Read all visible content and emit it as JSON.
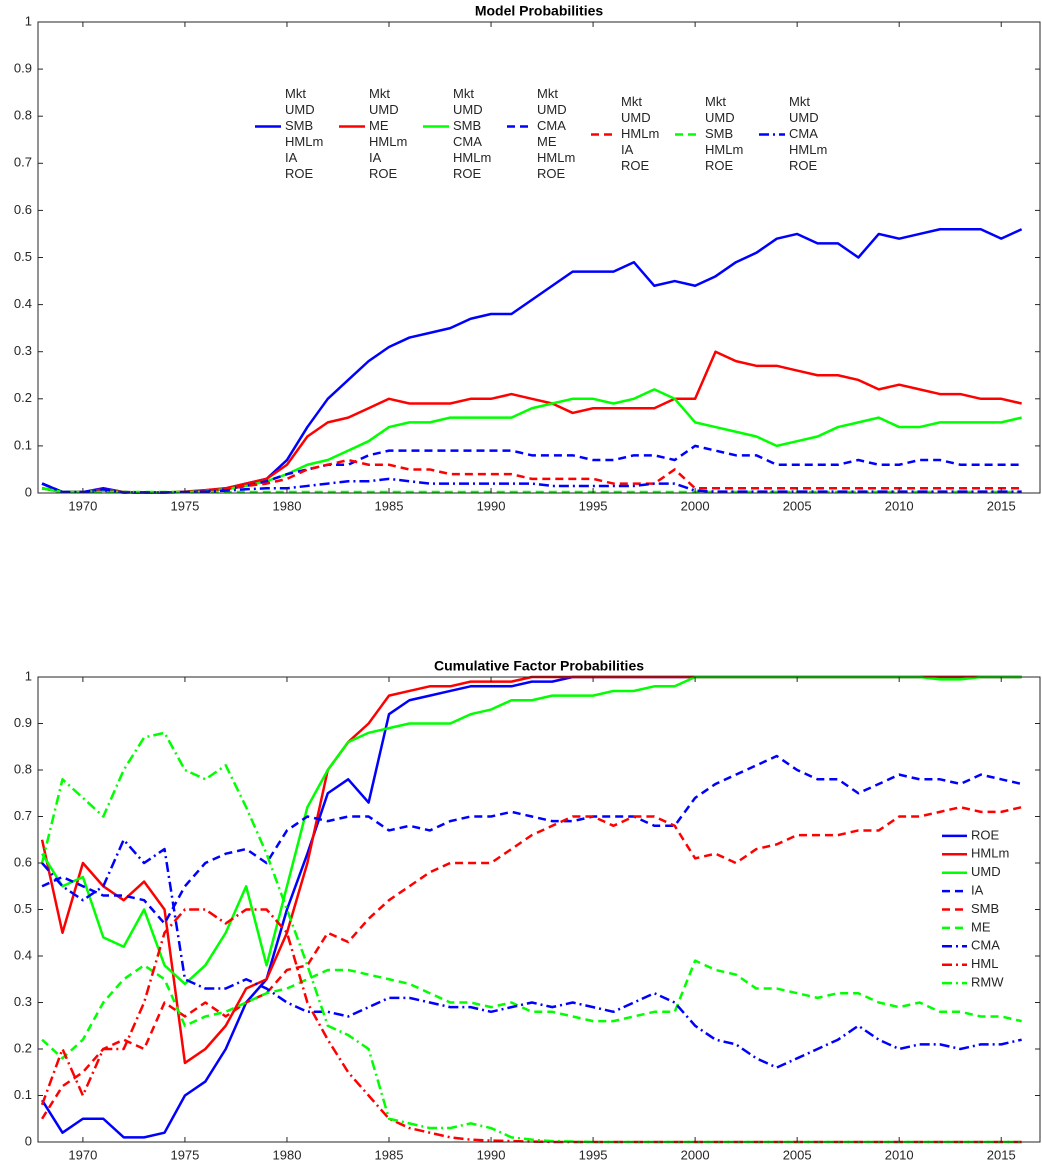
{
  "chart_data": [
    {
      "type": "line",
      "title": "Model Probabilities",
      "x": [
        1968,
        1969,
        1970,
        1971,
        1972,
        1973,
        1974,
        1975,
        1976,
        1977,
        1978,
        1979,
        1980,
        1981,
        1982,
        1983,
        1984,
        1985,
        1986,
        1987,
        1988,
        1989,
        1990,
        1991,
        1992,
        1993,
        1994,
        1995,
        1996,
        1997,
        1998,
        1999,
        2000,
        2001,
        2002,
        2003,
        2004,
        2005,
        2006,
        2007,
        2008,
        2009,
        2010,
        2011,
        2012,
        2013,
        2014,
        2015,
        2016
      ],
      "xlim": [
        1967.8,
        2016.9
      ],
      "xticks": [
        1970,
        1975,
        1980,
        1985,
        1990,
        1995,
        2000,
        2005,
        2010,
        2015
      ],
      "ylim": [
        0,
        1
      ],
      "yticks": [
        0,
        0.1,
        0.2,
        0.3,
        0.4,
        0.5,
        0.6,
        0.7,
        0.8,
        0.9,
        1
      ],
      "legend": "upper center",
      "grid": false,
      "series": [
        {
          "name": [
            "Mkt",
            "UMD",
            "SMB",
            "HMLm",
            "IA",
            "ROE"
          ],
          "color": "#0000ff",
          "dash": "solid",
          "values": [
            0.02,
            0.002,
            0.002,
            0.01,
            0.002,
            0.001,
            0.001,
            0.002,
            0.005,
            0.01,
            0.02,
            0.03,
            0.07,
            0.14,
            0.2,
            0.24,
            0.28,
            0.31,
            0.33,
            0.34,
            0.35,
            0.37,
            0.38,
            0.38,
            0.41,
            0.44,
            0.47,
            0.47,
            0.47,
            0.49,
            0.44,
            0.45,
            0.44,
            0.46,
            0.49,
            0.51,
            0.54,
            0.55,
            0.53,
            0.53,
            0.5,
            0.55,
            0.54,
            0.55,
            0.56,
            0.56,
            0.56,
            0.54,
            0.56
          ]
        },
        {
          "name": [
            "Mkt",
            "UMD",
            "ME",
            "HMLm",
            "IA",
            "ROE"
          ],
          "color": "#ff0000",
          "dash": "solid",
          "values": [
            0.01,
            0.002,
            0.002,
            0.008,
            0.002,
            0.001,
            0.001,
            0.003,
            0.006,
            0.01,
            0.02,
            0.03,
            0.06,
            0.12,
            0.15,
            0.16,
            0.18,
            0.2,
            0.19,
            0.19,
            0.19,
            0.2,
            0.2,
            0.21,
            0.2,
            0.19,
            0.17,
            0.18,
            0.18,
            0.18,
            0.18,
            0.2,
            0.2,
            0.3,
            0.28,
            0.27,
            0.27,
            0.26,
            0.25,
            0.25,
            0.24,
            0.22,
            0.23,
            0.22,
            0.21,
            0.21,
            0.2,
            0.2,
            0.19
          ]
        },
        {
          "name": [
            "Mkt",
            "UMD",
            "SMB",
            "CMA",
            "HMLm",
            "ROE"
          ],
          "color": "#00ff00",
          "dash": "solid",
          "values": [
            0.01,
            0.002,
            0.002,
            0.005,
            0.001,
            0.001,
            0.001,
            0.002,
            0.004,
            0.008,
            0.015,
            0.025,
            0.04,
            0.06,
            0.07,
            0.09,
            0.11,
            0.14,
            0.15,
            0.15,
            0.16,
            0.16,
            0.16,
            0.16,
            0.18,
            0.19,
            0.2,
            0.2,
            0.19,
            0.2,
            0.22,
            0.2,
            0.15,
            0.14,
            0.13,
            0.12,
            0.1,
            0.11,
            0.12,
            0.14,
            0.15,
            0.16,
            0.14,
            0.14,
            0.15,
            0.15,
            0.15,
            0.15,
            0.16
          ]
        },
        {
          "name": [
            "Mkt",
            "UMD",
            "CMA",
            "ME",
            "HMLm",
            "ROE"
          ],
          "color": "#0000ff",
          "dash": "dashed",
          "values": [
            0.02,
            0.002,
            0.002,
            0.005,
            0.001,
            0.001,
            0.001,
            0.002,
            0.004,
            0.008,
            0.015,
            0.025,
            0.04,
            0.05,
            0.06,
            0.06,
            0.08,
            0.09,
            0.09,
            0.09,
            0.09,
            0.09,
            0.09,
            0.09,
            0.08,
            0.08,
            0.08,
            0.07,
            0.07,
            0.08,
            0.08,
            0.07,
            0.1,
            0.09,
            0.08,
            0.08,
            0.06,
            0.06,
            0.06,
            0.06,
            0.07,
            0.06,
            0.06,
            0.07,
            0.07,
            0.06,
            0.06,
            0.06,
            0.06
          ]
        },
        {
          "name": [
            "Mkt",
            "UMD",
            "HMLm",
            "IA",
            "ROE"
          ],
          "color": "#ff0000",
          "dash": "dashed",
          "values": [
            0.01,
            0.002,
            0.002,
            0.004,
            0.001,
            0.001,
            0.001,
            0.002,
            0.004,
            0.008,
            0.015,
            0.02,
            0.03,
            0.05,
            0.06,
            0.07,
            0.06,
            0.06,
            0.05,
            0.05,
            0.04,
            0.04,
            0.04,
            0.04,
            0.03,
            0.03,
            0.03,
            0.03,
            0.02,
            0.02,
            0.02,
            0.05,
            0.01,
            0.01,
            0.01,
            0.01,
            0.01,
            0.01,
            0.01,
            0.01,
            0.01,
            0.01,
            0.01,
            0.01,
            0.01,
            0.01,
            0.01,
            0.01,
            0.01
          ]
        },
        {
          "name": [
            "Mkt",
            "UMD",
            "SMB",
            "HMLm",
            "ROE"
          ],
          "color": "#00ff00",
          "dash": "dashed",
          "values": [
            0.01,
            0.002,
            0.002,
            0.002,
            0.002,
            0.002,
            0.002,
            0.002,
            0.002,
            0.002,
            0.002,
            0.002,
            0.002,
            0.002,
            0.002,
            0.002,
            0.002,
            0.002,
            0.002,
            0.002,
            0.002,
            0.002,
            0.002,
            0.002,
            0.002,
            0.002,
            0.002,
            0.002,
            0.002,
            0.002,
            0.002,
            0.002,
            0.002,
            0.002,
            0.002,
            0.002,
            0.002,
            0.002,
            0.002,
            0.002,
            0.002,
            0.002,
            0.002,
            0.002,
            0.002,
            0.002,
            0.002,
            0.002,
            0.002
          ]
        },
        {
          "name": [
            "Mkt",
            "UMD",
            "CMA",
            "HMLm",
            "ROE"
          ],
          "color": "#0000ff",
          "dash": "dashdot",
          "values": [
            0.02,
            0.002,
            0.002,
            0.008,
            0.001,
            0.001,
            0.001,
            0.002,
            0.003,
            0.005,
            0.008,
            0.01,
            0.01,
            0.015,
            0.02,
            0.025,
            0.025,
            0.03,
            0.025,
            0.02,
            0.02,
            0.02,
            0.02,
            0.02,
            0.02,
            0.015,
            0.015,
            0.015,
            0.015,
            0.015,
            0.02,
            0.02,
            0.005,
            0.003,
            0.003,
            0.003,
            0.003,
            0.003,
            0.003,
            0.003,
            0.003,
            0.003,
            0.003,
            0.003,
            0.003,
            0.003,
            0.003,
            0.003,
            0.003
          ]
        }
      ]
    },
    {
      "type": "line",
      "title": "Cumulative Factor Probabilities",
      "x": [
        1968,
        1969,
        1970,
        1971,
        1972,
        1973,
        1974,
        1975,
        1976,
        1977,
        1978,
        1979,
        1980,
        1981,
        1982,
        1983,
        1984,
        1985,
        1986,
        1987,
        1988,
        1989,
        1990,
        1991,
        1992,
        1993,
        1994,
        1995,
        1996,
        1997,
        1998,
        1999,
        2000,
        2001,
        2002,
        2003,
        2004,
        2005,
        2006,
        2007,
        2008,
        2009,
        2010,
        2011,
        2012,
        2013,
        2014,
        2015,
        2016
      ],
      "xlim": [
        1967.8,
        2016.9
      ],
      "xticks": [
        1970,
        1975,
        1980,
        1985,
        1990,
        1995,
        2000,
        2005,
        2010,
        2015
      ],
      "ylim": [
        0,
        1
      ],
      "yticks": [
        0,
        0.1,
        0.2,
        0.3,
        0.4,
        0.5,
        0.6,
        0.7,
        0.8,
        0.9,
        1
      ],
      "legend": "center right",
      "grid": false,
      "series": [
        {
          "name": "ROE",
          "color": "#0000ff",
          "dash": "solid",
          "values": [
            0.09,
            0.02,
            0.05,
            0.05,
            0.01,
            0.01,
            0.02,
            0.1,
            0.13,
            0.2,
            0.3,
            0.35,
            0.5,
            0.62,
            0.75,
            0.78,
            0.73,
            0.92,
            0.95,
            0.96,
            0.97,
            0.98,
            0.98,
            0.98,
            0.99,
            0.99,
            1,
            1,
            1,
            1,
            1,
            1,
            1,
            1,
            1,
            1,
            1,
            1,
            1,
            1,
            1,
            1,
            1,
            1,
            1,
            1,
            1,
            1,
            1
          ]
        },
        {
          "name": "HMLm",
          "color": "#ff0000",
          "dash": "solid",
          "values": [
            0.65,
            0.45,
            0.6,
            0.55,
            0.52,
            0.56,
            0.5,
            0.17,
            0.2,
            0.25,
            0.33,
            0.35,
            0.45,
            0.6,
            0.8,
            0.86,
            0.9,
            0.96,
            0.97,
            0.98,
            0.98,
            0.99,
            0.99,
            0.99,
            1,
            1,
            1,
            1,
            1,
            1,
            1,
            1,
            1,
            1,
            1,
            1,
            1,
            1,
            1,
            1,
            1,
            1,
            1,
            1,
            1,
            1,
            1,
            1,
            1
          ]
        },
        {
          "name": "UMD",
          "color": "#00ff00",
          "dash": "solid",
          "values": [
            0.62,
            0.55,
            0.57,
            0.44,
            0.42,
            0.5,
            0.38,
            0.34,
            0.38,
            0.45,
            0.55,
            0.38,
            0.55,
            0.72,
            0.8,
            0.86,
            0.88,
            0.89,
            0.9,
            0.9,
            0.9,
            0.92,
            0.93,
            0.95,
            0.95,
            0.96,
            0.96,
            0.96,
            0.97,
            0.97,
            0.98,
            0.98,
            1,
            1,
            1,
            1,
            1,
            1,
            1,
            1,
            1,
            1,
            1,
            1,
            0.995,
            0.995,
            1,
            1,
            1
          ]
        },
        {
          "name": "IA",
          "color": "#0000ff",
          "dash": "dashed",
          "values": [
            0.55,
            0.57,
            0.55,
            0.53,
            0.53,
            0.52,
            0.47,
            0.55,
            0.6,
            0.62,
            0.63,
            0.6,
            0.67,
            0.7,
            0.69,
            0.7,
            0.7,
            0.67,
            0.68,
            0.67,
            0.69,
            0.7,
            0.7,
            0.71,
            0.7,
            0.69,
            0.69,
            0.7,
            0.7,
            0.7,
            0.68,
            0.68,
            0.74,
            0.77,
            0.79,
            0.81,
            0.83,
            0.8,
            0.78,
            0.78,
            0.75,
            0.77,
            0.79,
            0.78,
            0.78,
            0.77,
            0.79,
            0.78,
            0.77
          ]
        },
        {
          "name": "SMB",
          "color": "#ff0000",
          "dash": "dashed",
          "values": [
            0.05,
            0.12,
            0.15,
            0.2,
            0.22,
            0.2,
            0.3,
            0.27,
            0.3,
            0.27,
            0.3,
            0.32,
            0.37,
            0.38,
            0.45,
            0.43,
            0.48,
            0.52,
            0.55,
            0.58,
            0.6,
            0.6,
            0.6,
            0.63,
            0.66,
            0.68,
            0.7,
            0.7,
            0.68,
            0.7,
            0.7,
            0.68,
            0.61,
            0.62,
            0.6,
            0.63,
            0.64,
            0.66,
            0.66,
            0.66,
            0.67,
            0.67,
            0.7,
            0.7,
            0.71,
            0.72,
            0.71,
            0.71,
            0.72
          ]
        },
        {
          "name": "ME",
          "color": "#00ff00",
          "dash": "dashed",
          "values": [
            0.22,
            0.18,
            0.22,
            0.3,
            0.35,
            0.38,
            0.35,
            0.25,
            0.27,
            0.28,
            0.3,
            0.32,
            0.33,
            0.35,
            0.37,
            0.37,
            0.36,
            0.35,
            0.34,
            0.32,
            0.3,
            0.3,
            0.29,
            0.3,
            0.28,
            0.28,
            0.27,
            0.26,
            0.26,
            0.27,
            0.28,
            0.28,
            0.39,
            0.37,
            0.36,
            0.33,
            0.33,
            0.32,
            0.31,
            0.32,
            0.32,
            0.3,
            0.29,
            0.3,
            0.28,
            0.28,
            0.27,
            0.27,
            0.26
          ]
        },
        {
          "name": "CMA",
          "color": "#0000ff",
          "dash": "dashdot",
          "values": [
            0.6,
            0.55,
            0.52,
            0.55,
            0.65,
            0.6,
            0.63,
            0.35,
            0.33,
            0.33,
            0.35,
            0.33,
            0.3,
            0.28,
            0.28,
            0.27,
            0.29,
            0.31,
            0.31,
            0.3,
            0.29,
            0.29,
            0.28,
            0.29,
            0.3,
            0.29,
            0.3,
            0.29,
            0.28,
            0.3,
            0.32,
            0.3,
            0.25,
            0.22,
            0.21,
            0.18,
            0.16,
            0.18,
            0.2,
            0.22,
            0.25,
            0.22,
            0.2,
            0.21,
            0.21,
            0.2,
            0.21,
            0.21,
            0.22
          ]
        },
        {
          "name": "HML",
          "color": "#ff0000",
          "dash": "dashdot",
          "values": [
            0.08,
            0.2,
            0.1,
            0.2,
            0.2,
            0.3,
            0.45,
            0.5,
            0.5,
            0.47,
            0.5,
            0.5,
            0.45,
            0.3,
            0.22,
            0.15,
            0.1,
            0.05,
            0.03,
            0.02,
            0.01,
            0.005,
            0.003,
            0.002,
            0.001,
            0,
            0,
            0,
            0,
            0,
            0,
            0,
            0,
            0,
            0,
            0,
            0,
            0,
            0,
            0,
            0,
            0,
            0,
            0,
            0,
            0,
            0,
            0,
            0
          ]
        },
        {
          "name": "RMW",
          "color": "#00ff00",
          "dash": "dashdot",
          "values": [
            0.6,
            0.78,
            0.74,
            0.7,
            0.8,
            0.87,
            0.88,
            0.8,
            0.78,
            0.81,
            0.72,
            0.62,
            0.5,
            0.38,
            0.25,
            0.23,
            0.2,
            0.05,
            0.04,
            0.03,
            0.03,
            0.04,
            0.03,
            0.01,
            0.005,
            0.002,
            0.001,
            0,
            0,
            0,
            0,
            0,
            0,
            0,
            0,
            0,
            0,
            0,
            0,
            0,
            0,
            0,
            0,
            0,
            0,
            0,
            0,
            0,
            0
          ]
        }
      ]
    }
  ]
}
